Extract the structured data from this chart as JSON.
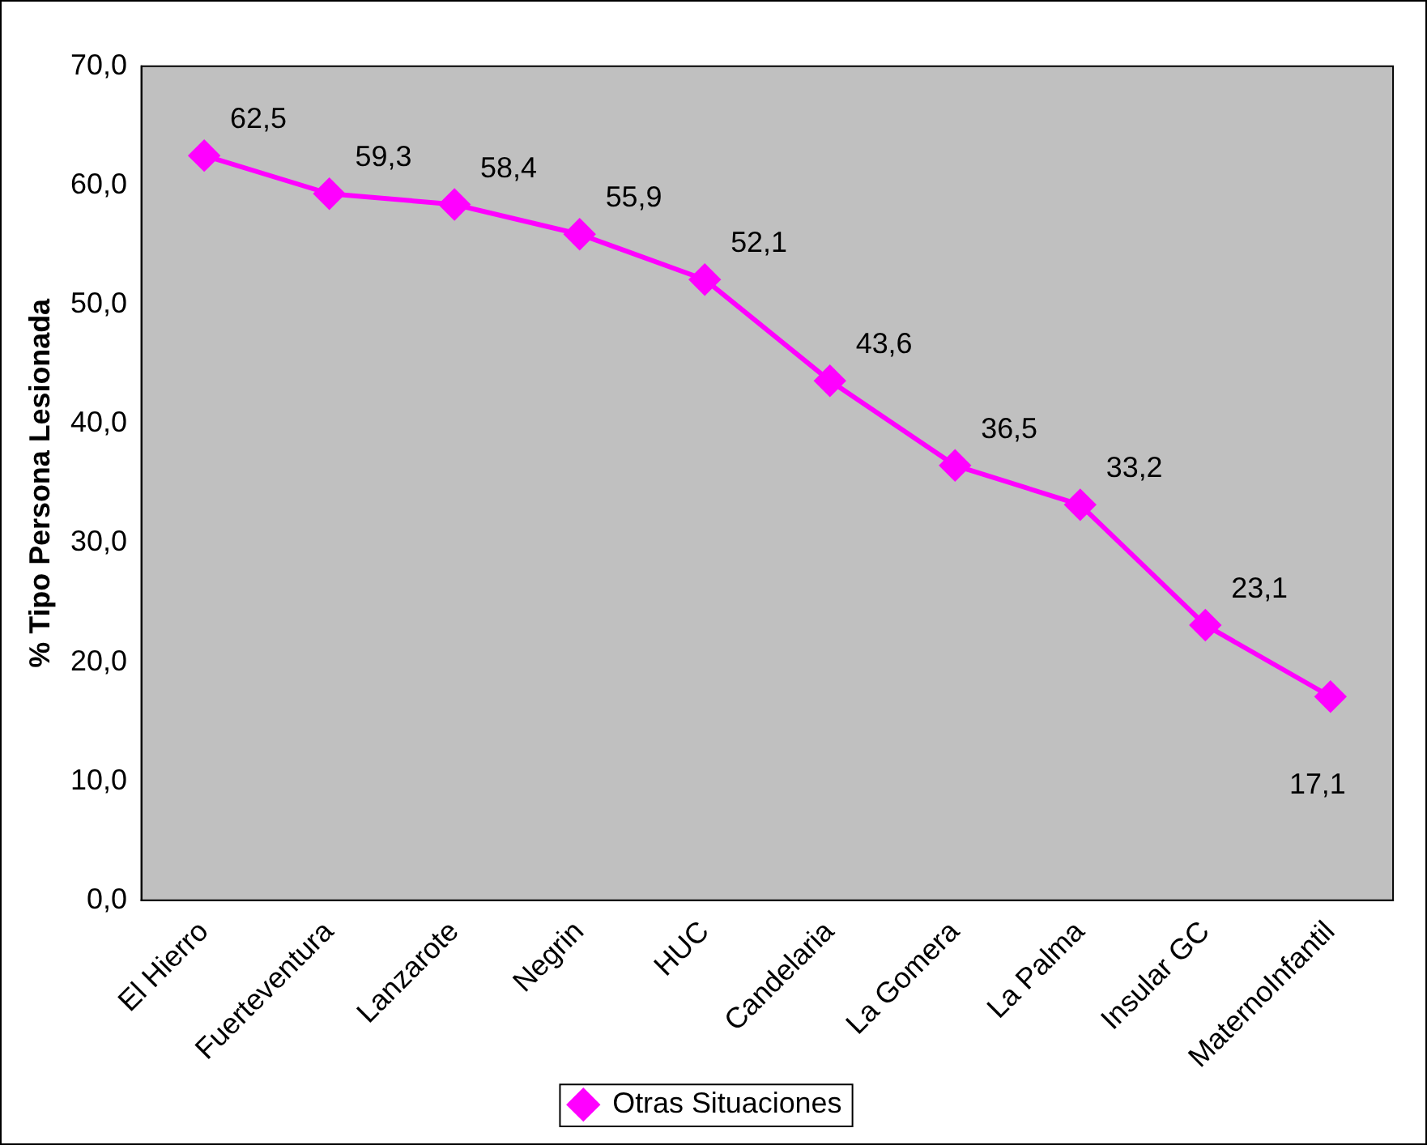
{
  "chart_data": {
    "type": "line",
    "ylabel": "% Tipo Persona Lesionada",
    "categories": [
      "El Hierro",
      "Fuerteventura",
      "Lanzarote",
      "Negrin",
      "HUC",
      "Candelaria",
      "La Gomera",
      "La Palma",
      "Insular GC",
      "MaternoInfantil"
    ],
    "series": [
      {
        "name": "Otras Situaciones",
        "color": "#ff00ff",
        "values": [
          62.5,
          59.3,
          58.4,
          55.9,
          52.1,
          43.6,
          36.5,
          33.2,
          23.1,
          17.1
        ],
        "value_labels": [
          "62,5",
          "59,3",
          "58,4",
          "55,9",
          "52,1",
          "43,6",
          "36,5",
          "33,2",
          "23,1",
          "17,1"
        ]
      }
    ],
    "ylim": [
      0,
      70
    ],
    "yticks": [
      {
        "value": 0,
        "label": "0,0"
      },
      {
        "value": 10,
        "label": "10,0"
      },
      {
        "value": 20,
        "label": "20,0"
      },
      {
        "value": 30,
        "label": "30,0"
      },
      {
        "value": 40,
        "label": "40,0"
      },
      {
        "value": 50,
        "label": "50,0"
      },
      {
        "value": 60,
        "label": "60,0"
      },
      {
        "value": 70,
        "label": "70,0"
      }
    ],
    "grid": false,
    "legend": "bottom",
    "marker": "diamond",
    "line_style": "solid"
  }
}
